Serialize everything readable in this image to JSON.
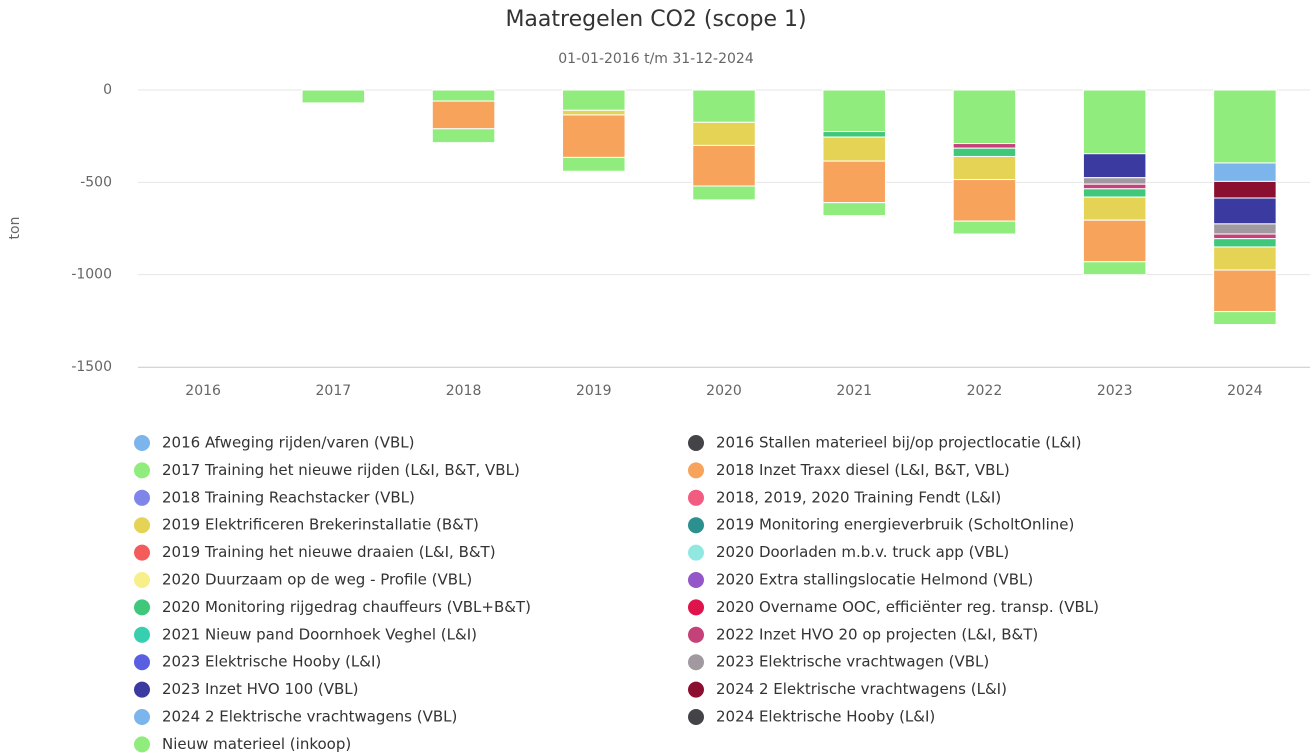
{
  "chart_data": {
    "type": "bar",
    "stacked": true,
    "title": "Maatregelen CO2 (scope 1)",
    "subtitle": "01-01-2016 t/m 31-12-2024",
    "y_label": "ton",
    "categories": [
      "2016",
      "2017",
      "2018",
      "2019",
      "2020",
      "2021",
      "2022",
      "2023",
      "2024"
    ],
    "ylim": [
      -1500,
      0
    ],
    "yticks": [
      0,
      -500,
      -1000,
      -1500
    ],
    "grid": true,
    "series": [
      {
        "name": "2016 Afweging rijden/varen (VBL)",
        "color": "#7cb5ec",
        "values": [
          0,
          0,
          0,
          0,
          0,
          0,
          0,
          0,
          0
        ]
      },
      {
        "name": "2016 Stallen materieel bij/op projectlocatie (L&I)",
        "color": "#434348",
        "values": [
          0,
          0,
          0,
          0,
          0,
          0,
          0,
          0,
          0
        ]
      },
      {
        "name": "2017 Training het nieuwe rijden (L&I, B&T, VBL)",
        "color": "#90ed7d",
        "values": [
          0,
          -70,
          -75,
          -75,
          -75,
          -70,
          -70,
          -70,
          -70
        ]
      },
      {
        "name": "2018 Inzet Traxx diesel (L&I, B&T, VBL)",
        "color": "#f7a35c",
        "values": [
          0,
          0,
          -150,
          -230,
          -220,
          -225,
          -225,
          -225,
          -225
        ]
      },
      {
        "name": "2018 Training Reachstacker (VBL)",
        "color": "#8085e9",
        "values": [
          0,
          0,
          0,
          0,
          0,
          0,
          0,
          0,
          0
        ]
      },
      {
        "name": "2018, 2019, 2020 Training Fendt (L&I)",
        "color": "#f15c80",
        "values": [
          0,
          0,
          0,
          0,
          0,
          0,
          0,
          0,
          0
        ]
      },
      {
        "name": "2019 Elektrificeren Brekerinstallatie (B&T)",
        "color": "#e4d354",
        "values": [
          0,
          0,
          0,
          -25,
          -125,
          -130,
          -125,
          -125,
          -125
        ]
      },
      {
        "name": "2019 Monitoring energieverbruik (ScholtOnline)",
        "color": "#2b908f",
        "values": [
          0,
          0,
          0,
          0,
          0,
          0,
          0,
          0,
          0
        ]
      },
      {
        "name": "2019 Training het nieuwe draaien (L&I, B&T)",
        "color": "#f45b5b",
        "values": [
          0,
          0,
          0,
          0,
          0,
          0,
          0,
          0,
          0
        ]
      },
      {
        "name": "2020 Doorladen m.b.v. truck app (VBL)",
        "color": "#91e8e1",
        "values": [
          0,
          0,
          0,
          0,
          0,
          0,
          0,
          0,
          0
        ]
      },
      {
        "name": "2020 Duurzaam op de weg - Profile (VBL)",
        "color": "#f7f08a",
        "values": [
          0,
          0,
          0,
          0,
          0,
          0,
          0,
          0,
          0
        ]
      },
      {
        "name": "2020 Extra stallingslocatie Helmond (VBL)",
        "color": "#9457c9",
        "values": [
          0,
          0,
          0,
          0,
          0,
          0,
          0,
          0,
          0
        ]
      },
      {
        "name": "2020 Monitoring rijgedrag chauffeurs (VBL+B&T)",
        "color": "#40c87a",
        "values": [
          0,
          0,
          0,
          0,
          0,
          -30,
          -45,
          -45,
          -45
        ]
      },
      {
        "name": "2020 Overname OOC, efficiënter reg. transp. (VBL)",
        "color": "#e0144c",
        "values": [
          0,
          0,
          0,
          0,
          0,
          0,
          0,
          0,
          0
        ]
      },
      {
        "name": "2021 Nieuw pand Doornhoek Veghel (L&I)",
        "color": "#36d0b0",
        "values": [
          0,
          0,
          0,
          0,
          0,
          0,
          0,
          0,
          0
        ]
      },
      {
        "name": "2022 Inzet HVO 20 op projecten (L&I, B&T)",
        "color": "#c4417a",
        "values": [
          0,
          0,
          0,
          0,
          0,
          0,
          -25,
          -25,
          -25
        ]
      },
      {
        "name": "2023 Elektrische Hooby (L&I)",
        "color": "#5a5ee0",
        "values": [
          0,
          0,
          0,
          0,
          0,
          0,
          0,
          0,
          0
        ]
      },
      {
        "name": "2023 Elektrische vrachtwagen (VBL)",
        "color": "#a09aa0",
        "values": [
          0,
          0,
          0,
          0,
          0,
          0,
          0,
          -35,
          -55
        ]
      },
      {
        "name": "2023 Inzet HVO 100 (VBL)",
        "color": "#3b3aa0",
        "values": [
          0,
          0,
          0,
          0,
          0,
          0,
          0,
          -130,
          -140
        ]
      },
      {
        "name": "2024 2 Elektrische vrachtwagens (L&I)",
        "color": "#8b1030",
        "values": [
          0,
          0,
          0,
          0,
          0,
          0,
          0,
          0,
          -90
        ]
      },
      {
        "name": "2024 2 Elektrische vrachtwagens (VBL)",
        "color": "#7cb5ec",
        "values": [
          0,
          0,
          0,
          0,
          0,
          0,
          0,
          0,
          -100
        ]
      },
      {
        "name": "2024 Elektrische Hooby (L&I)",
        "color": "#434348",
        "values": [
          0,
          0,
          0,
          0,
          0,
          0,
          0,
          0,
          0
        ]
      },
      {
        "name": "Nieuw materieel (inkoop)",
        "color": "#90ed7d",
        "values": [
          0,
          0,
          -60,
          -110,
          -175,
          -225,
          -290,
          -345,
          -395
        ]
      }
    ]
  }
}
